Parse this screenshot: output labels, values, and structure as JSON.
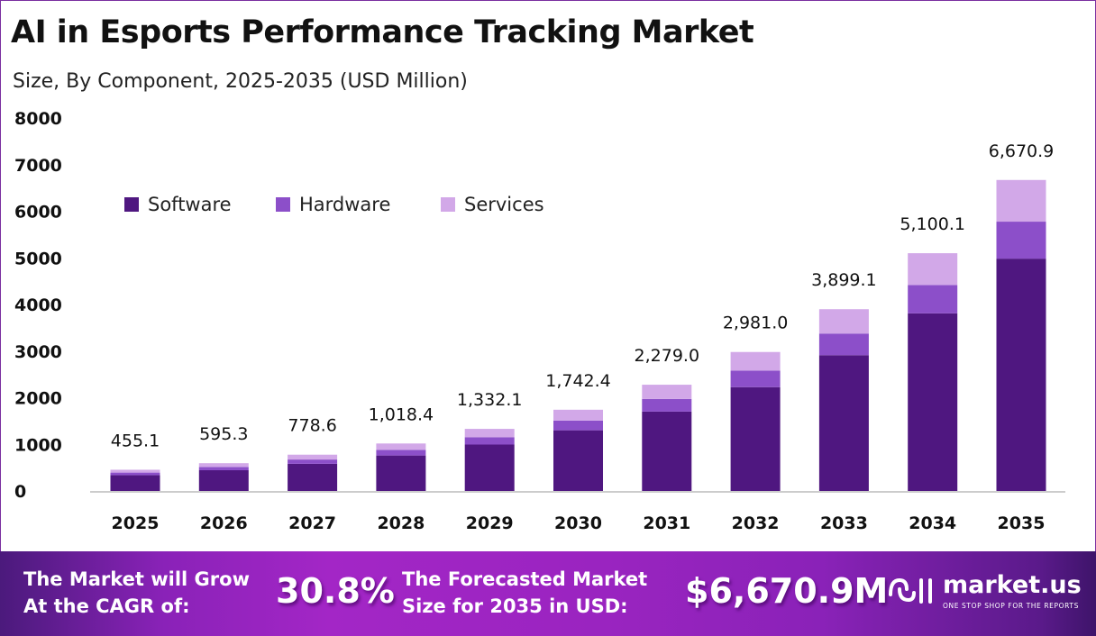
{
  "title": "AI in Esports Performance Tracking Market",
  "subtitle": "Size, By Component, 2025-2035 (USD Million)",
  "chart_data": {
    "type": "bar",
    "stacked": true,
    "categories": [
      "2025",
      "2026",
      "2027",
      "2028",
      "2029",
      "2030",
      "2031",
      "2032",
      "2033",
      "2034",
      "2035"
    ],
    "series": [
      {
        "name": "Software",
        "color": "#4f1780",
        "values": [
          340.0,
          444.7,
          581.6,
          760.7,
          995.1,
          1301.6,
          1702.4,
          2226.8,
          2912.6,
          3809.8,
          4983.2
        ]
      },
      {
        "name": "Hardware",
        "color": "#8c4fc9",
        "values": [
          54.2,
          70.8,
          92.7,
          121.2,
          158.5,
          207.3,
          271.2,
          354.7,
          464.0,
          606.9,
          793.8
        ]
      },
      {
        "name": "Services",
        "color": "#d2a8e8",
        "values": [
          60.9,
          79.8,
          104.3,
          136.5,
          178.5,
          233.5,
          305.4,
          399.5,
          522.5,
          683.4,
          893.9
        ]
      }
    ],
    "totals": [
      "455.1",
      "595.3",
      "778.6",
      "1,018.4",
      "1,332.1",
      "1,742.4",
      "2,279.0",
      "2,981.0",
      "3,899.1",
      "5,100.1",
      "6,670.9"
    ],
    "yticks": [
      "0",
      "1000",
      "2000",
      "3000",
      "4000",
      "5000",
      "6000",
      "7000",
      "8000"
    ],
    "ylim": [
      0,
      8000
    ],
    "legend_position": "top-left",
    "grid": false
  },
  "footer": {
    "cagr_label_1": "The Market will Grow",
    "cagr_label_2": "At the CAGR of:",
    "cagr_value": "30.8%",
    "forecast_label_1": "The Forecasted Market",
    "forecast_label_2": "Size for 2035 in USD:",
    "forecast_value": "$6,670.9M",
    "logo_name": "market.us",
    "logo_tagline": "ONE STOP SHOP FOR THE REPORTS"
  }
}
